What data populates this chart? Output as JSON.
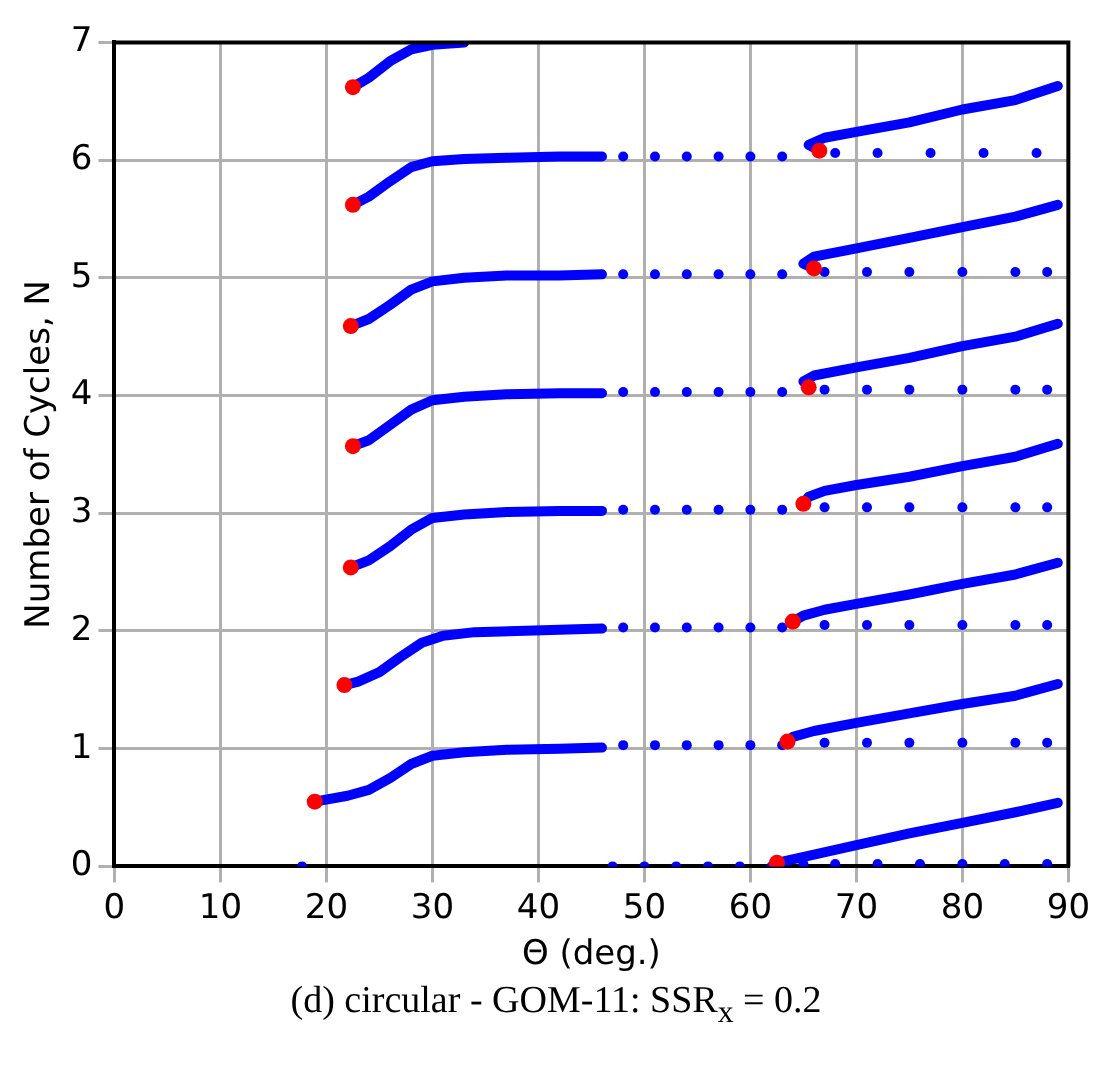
{
  "chart_data": {
    "type": "line",
    "xlabel": "Θ (deg.)",
    "ylabel": "Number of Cycles, N",
    "annotations": [
      "(d) circular - GOM-11: SSR$_{x}$ = 0.2"
    ],
    "xlim": [
      0,
      90
    ],
    "xticks": [
      0,
      10,
      20,
      30,
      40,
      50,
      60,
      70,
      80,
      90
    ],
    "ylim": [
      0,
      7
    ],
    "yticks": [
      0,
      1,
      2,
      3,
      4,
      5,
      6,
      7
    ],
    "grid": true,
    "legend": false,
    "marker": "none",
    "series": [
      {
        "color": "#0000ff",
        "x": [
          18.9,
          22,
          24,
          26,
          28,
          30,
          33,
          37,
          42,
          46
        ],
        "values": [
          0.55,
          0.6,
          0.65,
          0.75,
          0.87,
          0.94,
          0.97,
          0.99,
          1.0,
          1.01
        ]
      },
      {
        "color": "#0000ff",
        "x": [
          21.7,
          23,
          25,
          27,
          29,
          31,
          34,
          38,
          42,
          46
        ],
        "values": [
          1.54,
          1.57,
          1.65,
          1.78,
          1.9,
          1.96,
          1.99,
          2.0,
          2.01,
          2.02
        ]
      },
      {
        "color": "#0000ff",
        "x": [
          22.3,
          24,
          26,
          28,
          30,
          33,
          37,
          42,
          46
        ],
        "values": [
          2.54,
          2.6,
          2.72,
          2.86,
          2.96,
          2.99,
          3.01,
          3.02,
          3.02
        ]
      },
      {
        "color": "#0000ff",
        "x": [
          22.5,
          24,
          26,
          28,
          30,
          33,
          37,
          42,
          46
        ],
        "values": [
          3.57,
          3.62,
          3.75,
          3.88,
          3.96,
          3.99,
          4.01,
          4.02,
          4.02
        ]
      },
      {
        "color": "#0000ff",
        "x": [
          22.3,
          24,
          26,
          28,
          30,
          33,
          37,
          42,
          46
        ],
        "values": [
          4.59,
          4.65,
          4.77,
          4.9,
          4.97,
          5.0,
          5.02,
          5.02,
          5.03
        ]
      },
      {
        "color": "#0000ff",
        "x": [
          22.5,
          24,
          26,
          28,
          30,
          33,
          37,
          42,
          46
        ],
        "values": [
          5.62,
          5.69,
          5.82,
          5.94,
          5.99,
          6.01,
          6.02,
          6.03,
          6.03
        ]
      },
      {
        "color": "#0000ff",
        "x": [
          22.5,
          24,
          26,
          28,
          30,
          33
        ],
        "values": [
          6.62,
          6.7,
          6.84,
          6.94,
          6.98,
          7.0
        ]
      },
      {
        "color": "#0000ff",
        "x": [
          62.5,
          66,
          70,
          75,
          80,
          85,
          89
        ],
        "values": [
          0.03,
          0.1,
          0.18,
          0.28,
          0.37,
          0.46,
          0.54
        ]
      },
      {
        "color": "#0000ff",
        "x": [
          63.5,
          64,
          66,
          70,
          75,
          80,
          85,
          89
        ],
        "values": [
          1.06,
          1.1,
          1.15,
          1.22,
          1.3,
          1.38,
          1.45,
          1.55
        ]
      },
      {
        "color": "#0000ff",
        "x": [
          64,
          65,
          67,
          70,
          75,
          80,
          85,
          89
        ],
        "values": [
          2.08,
          2.13,
          2.18,
          2.23,
          2.31,
          2.4,
          2.48,
          2.58
        ]
      },
      {
        "color": "#0000ff",
        "x": [
          65,
          65.5,
          67,
          70,
          75,
          80,
          85,
          89
        ],
        "values": [
          3.08,
          3.14,
          3.19,
          3.24,
          3.31,
          3.4,
          3.48,
          3.59
        ]
      },
      {
        "color": "#0000ff",
        "x": [
          65.5,
          65,
          66,
          70,
          75,
          80,
          85,
          89
        ],
        "values": [
          4.07,
          4.12,
          4.17,
          4.24,
          4.32,
          4.42,
          4.5,
          4.61
        ]
      },
      {
        "color": "#0000ff",
        "x": [
          66,
          65,
          66,
          70,
          75,
          80,
          85,
          89
        ],
        "values": [
          5.08,
          5.12,
          5.18,
          5.25,
          5.34,
          5.43,
          5.52,
          5.62
        ]
      },
      {
        "color": "#0000ff",
        "x": [
          66.5,
          65.5,
          67,
          70,
          75,
          80,
          85,
          89
        ],
        "values": [
          6.08,
          6.13,
          6.19,
          6.24,
          6.32,
          6.43,
          6.51,
          6.63
        ]
      },
      {
        "type": "scatter",
        "marker": "circle",
        "color": "#0000ff",
        "x": [
          17.7,
          47,
          50,
          53,
          56,
          59,
          62,
          65,
          68,
          72,
          76,
          80,
          84,
          88,
          48,
          51,
          54,
          57,
          60,
          63,
          67,
          71,
          75,
          80,
          85,
          88,
          48,
          51,
          54,
          57,
          60,
          63,
          67,
          71,
          75,
          80,
          85,
          88,
          48,
          51,
          54,
          57,
          60,
          63,
          67,
          71,
          75,
          80,
          85,
          88,
          48,
          51,
          54,
          57,
          60,
          63,
          67,
          71,
          75,
          80,
          85,
          88,
          48,
          51,
          54,
          57,
          60,
          63,
          67,
          71,
          75,
          80,
          85,
          88,
          48,
          51,
          54,
          57,
          60,
          63,
          68,
          72,
          77,
          82,
          87
        ],
        "values": [
          0,
          0,
          0,
          0,
          0,
          0,
          0,
          0.02,
          0.02,
          0.02,
          0.02,
          0.02,
          0.02,
          0.02,
          1.03,
          1.03,
          1.03,
          1.03,
          1.03,
          1.03,
          1.05,
          1.05,
          1.05,
          1.05,
          1.05,
          1.05,
          2.03,
          2.03,
          2.03,
          2.03,
          2.03,
          2.03,
          2.05,
          2.05,
          2.05,
          2.05,
          2.05,
          2.05,
          3.03,
          3.03,
          3.03,
          3.03,
          3.03,
          3.03,
          3.05,
          3.05,
          3.05,
          3.05,
          3.05,
          3.05,
          4.03,
          4.03,
          4.03,
          4.03,
          4.03,
          4.03,
          4.05,
          4.05,
          4.05,
          4.05,
          4.05,
          4.05,
          5.03,
          5.03,
          5.03,
          5.03,
          5.03,
          5.03,
          5.05,
          5.05,
          5.05,
          5.05,
          5.05,
          5.05,
          6.03,
          6.03,
          6.03,
          6.03,
          6.03,
          6.03,
          6.06,
          6.06,
          6.06,
          6.06,
          6.06
        ]
      },
      {
        "type": "scatter",
        "marker": "circle",
        "color": "#ff0000",
        "x": [
          18.9,
          21.7,
          22.3,
          22.5,
          22.3,
          22.5,
          22.5,
          62.5,
          63.5,
          64,
          65,
          65.5,
          66,
          66.5
        ],
        "values": [
          0.55,
          1.54,
          2.54,
          3.57,
          4.59,
          5.62,
          6.62,
          0.03,
          1.06,
          2.08,
          3.08,
          4.07,
          5.08,
          6.08
        ]
      }
    ]
  }
}
